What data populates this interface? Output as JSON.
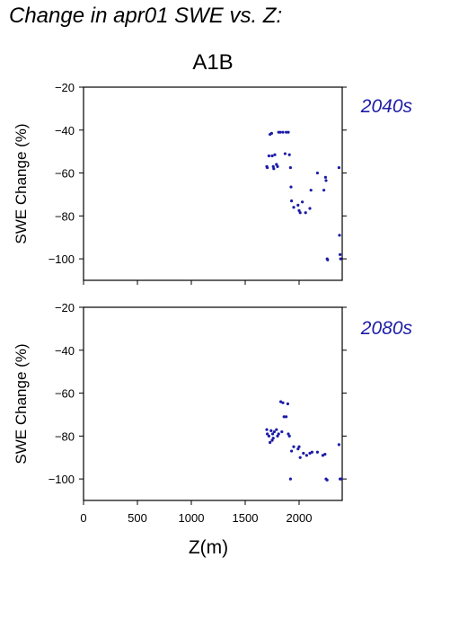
{
  "title": "Change in apr01 SWE vs. Z:",
  "scenario": "A1B",
  "colors": {
    "points": "#1c1ca8",
    "period_label": "#1c1ca8",
    "axes": "#000000"
  },
  "chart_data": [
    {
      "type": "scatter",
      "period": "2040s",
      "xlabel": "",
      "ylabel": "SWE Change (%)",
      "xlim": [
        0,
        2400
      ],
      "ylim": [
        -110,
        -20
      ],
      "xticks": [
        0,
        500,
        1000,
        1500,
        2000
      ],
      "yticks": [
        -20,
        -40,
        -60,
        -80,
        -100
      ],
      "ytick_labels": [
        "−20",
        "−40",
        "−60",
        "−80",
        "−100"
      ],
      "show_x_tick_labels": false,
      "grid": false,
      "points": [
        [
          1700,
          -57
        ],
        [
          1705,
          -57.5
        ],
        [
          1720,
          -52
        ],
        [
          1730,
          -42
        ],
        [
          1745,
          -41.5
        ],
        [
          1750,
          -52
        ],
        [
          1760,
          -57
        ],
        [
          1765,
          -58
        ],
        [
          1775,
          -51.5
        ],
        [
          1790,
          -56
        ],
        [
          1800,
          -57
        ],
        [
          1810,
          -41
        ],
        [
          1825,
          -41
        ],
        [
          1850,
          -41
        ],
        [
          1870,
          -51
        ],
        [
          1880,
          -41
        ],
        [
          1900,
          -41
        ],
        [
          1910,
          -51.5
        ],
        [
          1920,
          -57.5
        ],
        [
          1925,
          -66.5
        ],
        [
          1930,
          -73
        ],
        [
          1950,
          -76
        ],
        [
          1990,
          -75
        ],
        [
          2000,
          -77.5
        ],
        [
          2010,
          -78.5
        ],
        [
          2030,
          -73.5
        ],
        [
          2060,
          -78.5
        ],
        [
          2100,
          -76.5
        ],
        [
          2110,
          -68
        ],
        [
          2170,
          -60
        ],
        [
          2230,
          -68
        ],
        [
          2245,
          -62
        ],
        [
          2250,
          -63.5
        ],
        [
          2260,
          -100
        ],
        [
          2265,
          -100.5
        ],
        [
          2370,
          -57.5
        ],
        [
          2375,
          -89
        ],
        [
          2380,
          -98
        ],
        [
          2385,
          -100
        ]
      ]
    },
    {
      "type": "scatter",
      "period": "2080s",
      "xlabel": "Z(m)",
      "ylabel": "SWE Change (%)",
      "xlim": [
        0,
        2400
      ],
      "ylim": [
        -110,
        -20
      ],
      "xticks": [
        0,
        500,
        1000,
        1500,
        2000
      ],
      "xtick_labels": [
        "0",
        "500",
        "1000",
        "1500",
        "2000"
      ],
      "yticks": [
        -20,
        -40,
        -60,
        -80,
        -100
      ],
      "ytick_labels": [
        "−20",
        "−40",
        "−60",
        "−80",
        "−100"
      ],
      "show_x_tick_labels": true,
      "grid": false,
      "points": [
        [
          1700,
          -77
        ],
        [
          1705,
          -79
        ],
        [
          1720,
          -80
        ],
        [
          1730,
          -83
        ],
        [
          1740,
          -77.5
        ],
        [
          1750,
          -82
        ],
        [
          1755,
          -79
        ],
        [
          1760,
          -81
        ],
        [
          1770,
          -78
        ],
        [
          1790,
          -77
        ],
        [
          1800,
          -80
        ],
        [
          1810,
          -79
        ],
        [
          1830,
          -64
        ],
        [
          1840,
          -78
        ],
        [
          1850,
          -64.5
        ],
        [
          1860,
          -71
        ],
        [
          1880,
          -71
        ],
        [
          1895,
          -65
        ],
        [
          1900,
          -79
        ],
        [
          1910,
          -80
        ],
        [
          1920,
          -100
        ],
        [
          1930,
          -87
        ],
        [
          1950,
          -85
        ],
        [
          1990,
          -86
        ],
        [
          2000,
          -85
        ],
        [
          2010,
          -90
        ],
        [
          2040,
          -88
        ],
        [
          2070,
          -89
        ],
        [
          2100,
          -88
        ],
        [
          2120,
          -87.5
        ],
        [
          2170,
          -87.5
        ],
        [
          2220,
          -89
        ],
        [
          2240,
          -88.5
        ],
        [
          2250,
          -100
        ],
        [
          2260,
          -100.5
        ],
        [
          2370,
          -84
        ],
        [
          2380,
          -100
        ],
        [
          2390,
          -100
        ]
      ]
    }
  ]
}
